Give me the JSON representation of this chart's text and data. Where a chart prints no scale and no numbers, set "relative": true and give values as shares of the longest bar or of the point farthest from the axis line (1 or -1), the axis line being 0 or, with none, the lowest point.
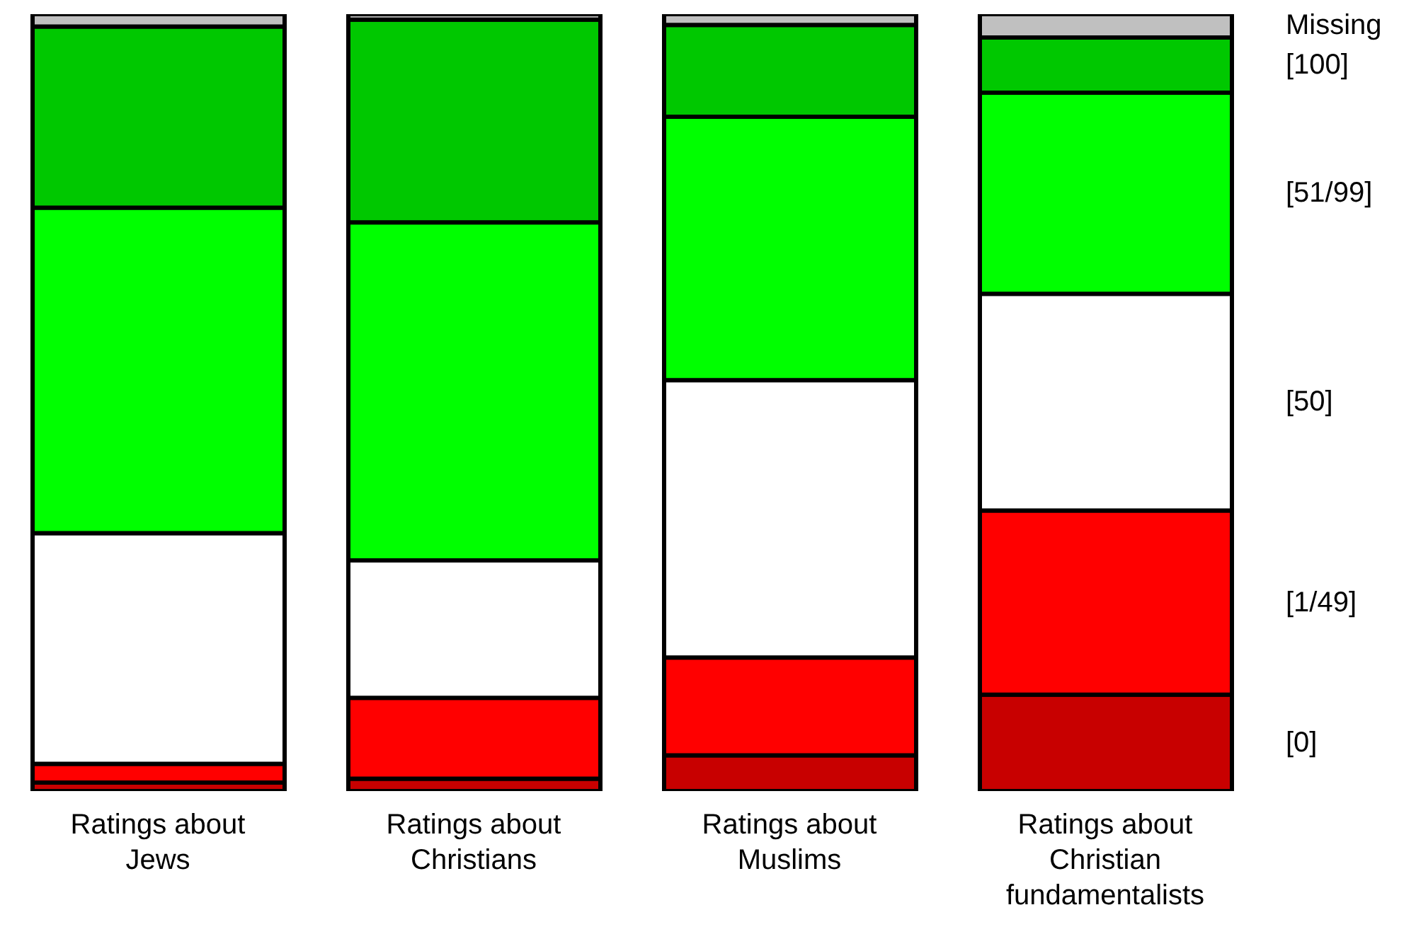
{
  "chart_data": {
    "type": "bar",
    "stacked": true,
    "relative": true,
    "legend": false,
    "grid": false,
    "categories": [
      "Ratings about Jews",
      "Ratings about Christians",
      "Ratings about Muslims",
      "Ratings about Christian fundamentalists"
    ],
    "series": [
      {
        "name": "[0]",
        "color": "#c80000",
        "values": [
          0.011,
          0.016,
          0.046,
          0.124
        ]
      },
      {
        "name": "[1/49]",
        "color": "#ff0000",
        "values": [
          0.024,
          0.104,
          0.126,
          0.237
        ]
      },
      {
        "name": "[50]",
        "color": "#ffffff",
        "values": [
          0.297,
          0.177,
          0.357,
          0.279
        ]
      },
      {
        "name": "[51/99]",
        "color": "#00ff00",
        "values": [
          0.419,
          0.435,
          0.339,
          0.259
        ]
      },
      {
        "name": "[100]",
        "color": "#00c800",
        "values": [
          0.233,
          0.261,
          0.118,
          0.071
        ]
      },
      {
        "name": "Missing",
        "color": "#c0c0c0",
        "values": [
          0.016,
          0.007,
          0.014,
          0.03
        ]
      }
    ]
  }
}
